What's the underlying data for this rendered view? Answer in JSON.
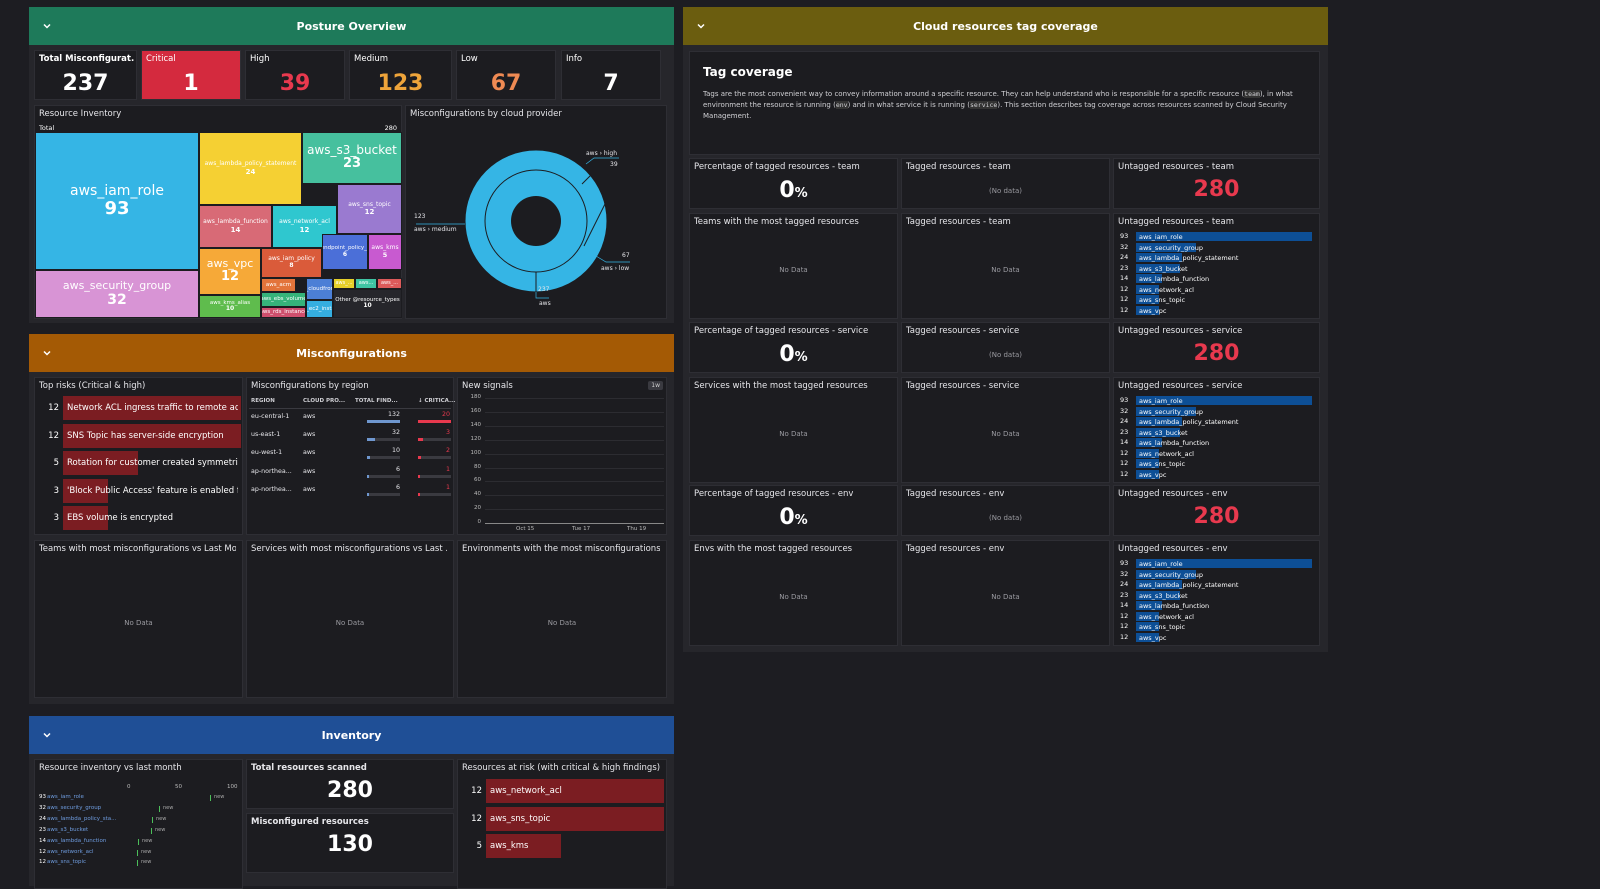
{
  "posture": {
    "title": "Posture Overview",
    "counters": [
      {
        "label": "Total Misconfigurat...",
        "value": "237",
        "color": "#ffffff",
        "bg": "#1c1c20"
      },
      {
        "label": "Critical",
        "value": "1",
        "color": "#ffffff",
        "bg": "#d42a3e"
      },
      {
        "label": "High",
        "value": "39",
        "color": "#e8394e",
        "bg": "#1c1c20"
      },
      {
        "label": "Medium",
        "value": "123",
        "color": "#eea43a",
        "bg": "#1c1c20"
      },
      {
        "label": "Low",
        "value": "67",
        "color": "#ef8a53",
        "bg": "#1c1c20"
      },
      {
        "label": "Info",
        "value": "7",
        "color": "#ffffff",
        "bg": "#1c1c20"
      }
    ],
    "inventory": {
      "title": "Resource Inventory",
      "total_label": "Total",
      "total_value": "280",
      "cells": [
        {
          "name": "aws_iam_role",
          "value": "93",
          "color": "#35b5e5"
        },
        {
          "name": "aws_security_group",
          "value": "32",
          "color": "#d894d5"
        },
        {
          "name": "aws_lambda_policy_statement",
          "value": "24",
          "color": "#f5d033"
        },
        {
          "name": "aws_s3_bucket",
          "value": "23",
          "color": "#46c09e"
        },
        {
          "name": "aws_lambda_function",
          "value": "14",
          "color": "#d86a76"
        },
        {
          "name": "aws_network_acl",
          "value": "12",
          "color": "#2fc7cf"
        },
        {
          "name": "aws_sns_topic",
          "value": "12",
          "color": "#9a7ad0"
        },
        {
          "name": "aws_vpc",
          "value": "12",
          "color": "#f6a938"
        },
        {
          "name": "aws_iam_policy",
          "value": "8",
          "color": "#da5b3a"
        },
        {
          "name": "aws_vpc_endpoint_policy_statement",
          "value": "6",
          "color": "#4b6fd8"
        },
        {
          "name": "aws_kms",
          "value": "5",
          "color": "#c85ad0"
        },
        {
          "name": "aws_kms_alias",
          "value": "10",
          "color": "#5fbc4d"
        },
        {
          "name": "aws_acm",
          "value": "",
          "color": "#e3743b"
        },
        {
          "name": "aws_cloudfront_...",
          "value": "",
          "color": "#4c7fd6"
        },
        {
          "name": "aws_...",
          "value": "",
          "color": "#e6cf2a"
        },
        {
          "name": "aws...",
          "value": "",
          "color": "#3fc4a3"
        },
        {
          "name": "aws_...",
          "value": "",
          "color": "#dc5a5a"
        },
        {
          "name": "aws_ebs_volume",
          "value": "",
          "color": "#35b37a"
        },
        {
          "name": "aws_ec2_instan...",
          "value": "",
          "color": "#35aee0"
        },
        {
          "name": "aws_rds_instance",
          "value": "",
          "color": "#cf4f6d"
        },
        {
          "name": "aws_elbv2_load...",
          "value": "",
          "color": "#b56bd6"
        },
        {
          "name": "Other @resource_types",
          "value": "10",
          "color": "#26262b"
        }
      ]
    },
    "donut": {
      "title": "Misconfigurations by cloud provider",
      "high_label": "aws › high",
      "high_value": "39",
      "medium_label": "aws › medium",
      "medium_value": "123",
      "low_label": "aws › low",
      "low_value": "67",
      "total_label": "aws",
      "total_value": "237",
      "color": "#35b5e5"
    }
  },
  "misconf": {
    "title": "Misconfigurations",
    "top_risks": {
      "title": "Top risks (Critical & high)",
      "items": [
        {
          "count": "12",
          "text": "Network ACL ingress traffic to remote ad...",
          "frac": 1.0
        },
        {
          "count": "12",
          "text": "SNS Topic has server-side encryption",
          "frac": 1.0
        },
        {
          "count": "5",
          "text": "Rotation for customer created symmetric...",
          "frac": 0.42
        },
        {
          "count": "3",
          "text": "'Block Public Access' feature is enabled fo...",
          "frac": 0.25
        },
        {
          "count": "3",
          "text": "EBS volume is encrypted",
          "frac": 0.25
        }
      ]
    },
    "by_region": {
      "title": "Misconfigurations by region",
      "columns": [
        "REGION",
        "CLOUD PRO...",
        "TOTAL FIND...",
        "↓ CRITICA..."
      ],
      "rows": [
        {
          "region": "eu-central-1",
          "cloud": "aws",
          "total": "132",
          "critical": "20",
          "tf": 1.0,
          "cf": 1.0
        },
        {
          "region": "us-east-1",
          "cloud": "aws",
          "total": "32",
          "critical": "3",
          "tf": 0.24,
          "cf": 0.15
        },
        {
          "region": "eu-west-1",
          "cloud": "aws",
          "total": "10",
          "critical": "2",
          "tf": 0.08,
          "cf": 0.1
        },
        {
          "region": "ap-northea...",
          "cloud": "aws",
          "total": "6",
          "critical": "1",
          "tf": 0.05,
          "cf": 0.05
        },
        {
          "region": "ap-northea...",
          "cloud": "aws",
          "total": "6",
          "critical": "1",
          "tf": 0.05,
          "cf": 0.05
        }
      ]
    },
    "new_signals": {
      "title": "New signals",
      "badge": "1w",
      "y_ticks": [
        "180",
        "160",
        "140",
        "120",
        "100",
        "80",
        "60",
        "40",
        "20",
        "0"
      ],
      "x_ticks": [
        "Oct 15",
        "Tue 17",
        "Thu 19"
      ]
    },
    "teams_title": "Teams with most misconfigurations vs Last Mo...",
    "services_title": "Services with most misconfigurations vs Last ...",
    "envs_title": "Environments with the most misconfigurations...",
    "no_data": "No Data"
  },
  "inventory": {
    "title": "Inventory",
    "vs_last_month": {
      "title": "Resource inventory vs last month",
      "axis": [
        "0",
        "50",
        "100"
      ],
      "new_label": "new",
      "rows": [
        {
          "count": "93",
          "name": "aws_iam_role"
        },
        {
          "count": "32",
          "name": "aws_security_group"
        },
        {
          "count": "24",
          "name": "aws_lambda_policy_sta..."
        },
        {
          "count": "23",
          "name": "aws_s3_bucket"
        },
        {
          "count": "14",
          "name": "aws_lambda_function"
        },
        {
          "count": "12",
          "name": "aws_network_acl"
        },
        {
          "count": "12",
          "name": "aws_sns_topic"
        }
      ]
    },
    "scanned_title": "Total resources scanned",
    "scanned_value": "280",
    "misconfigured_title": "Misconfigured resources",
    "misconfigured_value": "130",
    "at_risk": {
      "title": "Resources at risk (with critical & high findings)",
      "items": [
        {
          "count": "12",
          "name": "aws_network_acl",
          "frac": 1.0
        },
        {
          "count": "12",
          "name": "aws_sns_topic",
          "frac": 1.0
        },
        {
          "count": "5",
          "name": "aws_kms",
          "frac": 0.42
        }
      ]
    }
  },
  "tags": {
    "title": "Cloud resources tag coverage",
    "intro_title": "Tag coverage",
    "intro_text_1": "Tags are the most convenient way to convey information around a specific resource. They can help understand who is responsible for a specific resource (",
    "code_team": "team",
    "intro_text_2": "), in what environment the resource is running (",
    "code_env": "env",
    "intro_text_3": ") and in what service it is running (",
    "code_service": "service",
    "intro_text_4": "). This section describes tag coverage across resources scanned by Cloud Security Management.",
    "pct_suffix": "%",
    "no_data_paren": "(No data)",
    "no_data": "No Data",
    "sections": [
      {
        "pct_title": "Percentage of tagged resources - team",
        "pct_value": "0",
        "tagged_title": "Tagged resources - team",
        "untagged_title": "Untagged resources - team",
        "untagged_value": "280",
        "most_title": "Teams with the most tagged resources",
        "tagged2_title": "Tagged resources - team",
        "untagged2_title": "Untagged resources - team"
      },
      {
        "pct_title": "Percentage of tagged resources - service",
        "pct_value": "0",
        "tagged_title": "Tagged resources - service",
        "untagged_title": "Untagged resources - service",
        "untagged_value": "280",
        "most_title": "Services with the most tagged resources",
        "tagged2_title": "Tagged resources - service",
        "untagged2_title": "Untagged resources - service"
      },
      {
        "pct_title": "Percentage of tagged resources - env",
        "pct_value": "0",
        "tagged_title": "Tagged resources - env",
        "untagged_title": "Untagged resources - env",
        "untagged_value": "280",
        "most_title": "Envs with the most tagged resources",
        "tagged2_title": "Tagged resources - env",
        "untagged2_title": "Untagged resources - env"
      }
    ],
    "untagged_list": [
      {
        "count": "93",
        "name": "aws_iam_role",
        "frac": 1.0
      },
      {
        "count": "32",
        "name": "aws_security_group",
        "frac": 0.34
      },
      {
        "count": "24",
        "name": "aws_lambda_policy_statement",
        "frac": 0.26
      },
      {
        "count": "23",
        "name": "aws_s3_bucket",
        "frac": 0.25
      },
      {
        "count": "14",
        "name": "aws_lambda_function",
        "frac": 0.15
      },
      {
        "count": "12",
        "name": "aws_network_acl",
        "frac": 0.13
      },
      {
        "count": "12",
        "name": "aws_sns_topic",
        "frac": 0.13
      },
      {
        "count": "12",
        "name": "aws_vpc",
        "frac": 0.13
      }
    ]
  },
  "colors": {
    "posture_header": "#1e7a5a",
    "misconf_header": "#a45a05",
    "inventory_header": "#1f4f96",
    "tags_header": "#6b5d0f",
    "critical": "#e8394e",
    "bar_blue": "#0d4f96",
    "bar_red": "#7b1d22"
  }
}
